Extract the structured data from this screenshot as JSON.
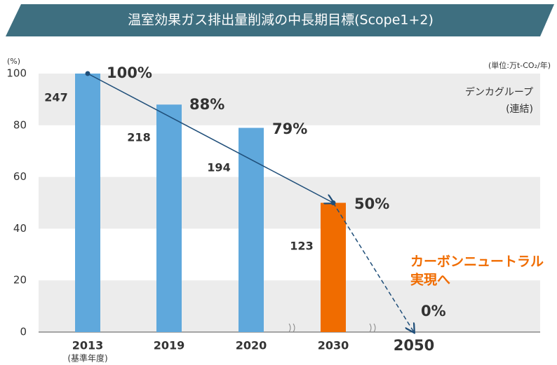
{
  "chart_data": {
    "type": "bar",
    "title": "温室効果ガス排出量削減の中長期目標(Scope1+2)",
    "y_unit": "(%)",
    "unit_note": "(単位:万t-CO₂/年)",
    "group_note": [
      "デンカグループ",
      "(連結)"
    ],
    "target_note": [
      "カーボンニュートラル",
      "実現へ"
    ],
    "categories": [
      "2013",
      "2019",
      "2020",
      "2030",
      "2050"
    ],
    "category_sublabels": [
      "(基準年度)",
      null,
      null,
      null,
      null
    ],
    "values": [
      100,
      88,
      79,
      50,
      0
    ],
    "value_labels": [
      "100%",
      "88%",
      "79%",
      "50%",
      "0%"
    ],
    "emissions": [
      247,
      218,
      194,
      123,
      null
    ],
    "colors": [
      "#5fa8dc",
      "#5fa8dc",
      "#5fa8dc",
      "#f06c00",
      "#5fa8dc"
    ],
    "ylim": [
      0,
      100
    ],
    "yticks": [
      0,
      20,
      40,
      60,
      80,
      100
    ],
    "grid": "bands"
  }
}
